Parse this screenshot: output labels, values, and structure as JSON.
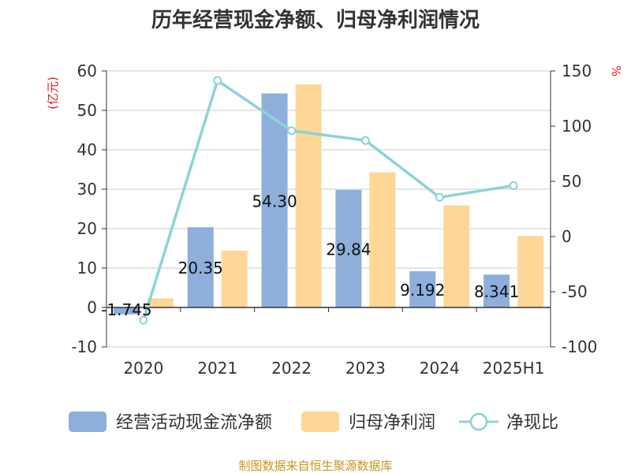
{
  "chart_data": {
    "type": "bar",
    "title": "历年经营现金净额、归母净利润情况",
    "categories": [
      "2020",
      "2021",
      "2022",
      "2023",
      "2024",
      "2025H1"
    ],
    "y_left": {
      "unit": "(亿元)",
      "ylim": [
        -10,
        60
      ],
      "ticks": [
        -10,
        0,
        10,
        20,
        30,
        40,
        50,
        60
      ]
    },
    "y_right": {
      "unit": "%",
      "ylim": [
        -100,
        150
      ],
      "ticks": [
        -100,
        -50,
        0,
        50,
        100,
        150
      ]
    },
    "grid": true,
    "legend_position": "bottom",
    "series": [
      {
        "name": "经营活动现金流净额",
        "type": "bar",
        "axis": "left",
        "color": "#8eaedc",
        "values": [
          -1.745,
          20.35,
          54.3,
          29.84,
          9.192,
          8.341
        ],
        "data_labels": [
          "-1.745",
          "20.35",
          "54.30",
          "29.84",
          "9.192",
          "8.341"
        ]
      },
      {
        "name": "归母净利润",
        "type": "bar",
        "axis": "left",
        "color": "#fed797",
        "values": [
          2.3,
          14.4,
          56.6,
          34.3,
          25.9,
          18.1
        ]
      },
      {
        "name": "净现比",
        "type": "line",
        "axis": "right",
        "color": "#8cd3d8",
        "values": [
          -75.9,
          141.3,
          95.9,
          87.0,
          35.5,
          46.1
        ]
      }
    ]
  },
  "source": "制图数据来自恒生聚源数据库"
}
